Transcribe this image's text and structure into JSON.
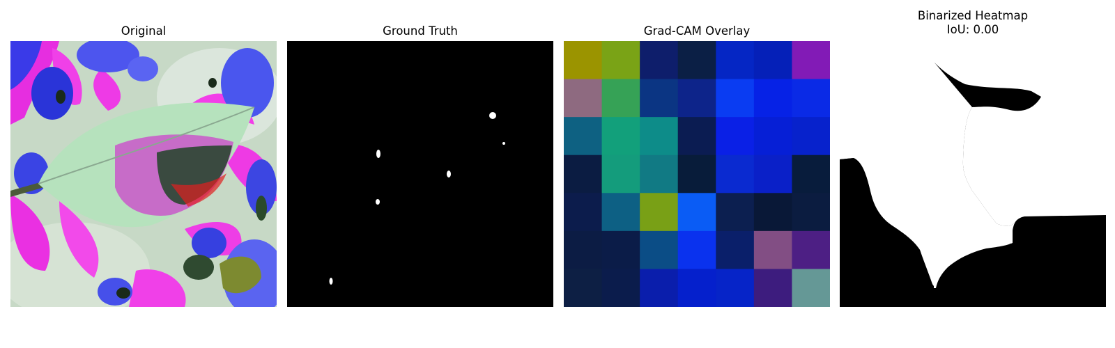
{
  "panels": {
    "original": {
      "title": "Original"
    },
    "ground_truth": {
      "title": "Ground Truth"
    },
    "gradcam": {
      "title": "Grad-CAM Overlay"
    },
    "binarized": {
      "title": "Binarized Heatmap",
      "iou_label": "IoU: 0.00"
    }
  },
  "gradcam_grid": [
    [
      "#9b9400",
      "#7aa316",
      "#0e1e6b",
      "#0b1f45",
      "#0526c4",
      "#0520b8",
      "#821bb6"
    ],
    [
      "#8e6a80",
      "#36a256",
      "#0b3583",
      "#0d248a",
      "#0a3cf2",
      "#0622e6",
      "#0a2ae6"
    ],
    [
      "#0e6182",
      "#12a07b",
      "#0d8c89",
      "#0b1c52",
      "#0a20e6",
      "#061fd6",
      "#0722cc"
    ],
    [
      "#0b1c42",
      "#149c7c",
      "#117a84",
      "#081c3a",
      "#0a2ad0",
      "#0a20c8",
      "#081c3c"
    ],
    [
      "#0c1c4c",
      "#0d6084",
      "#79a016",
      "#0a5cf5",
      "#0c1f50",
      "#091837",
      "#0b1c40"
    ],
    [
      "#0c1c44",
      "#0b1c48",
      "#0b4d86",
      "#0a32ee",
      "#0a1f6a",
      "#824e84",
      "#4d1f84"
    ],
    [
      "#0d1f44",
      "#0b1c4c",
      "#0a1eac",
      "#0520cc",
      "#0624c8",
      "#3d1c7e",
      "#659896"
    ]
  ]
}
